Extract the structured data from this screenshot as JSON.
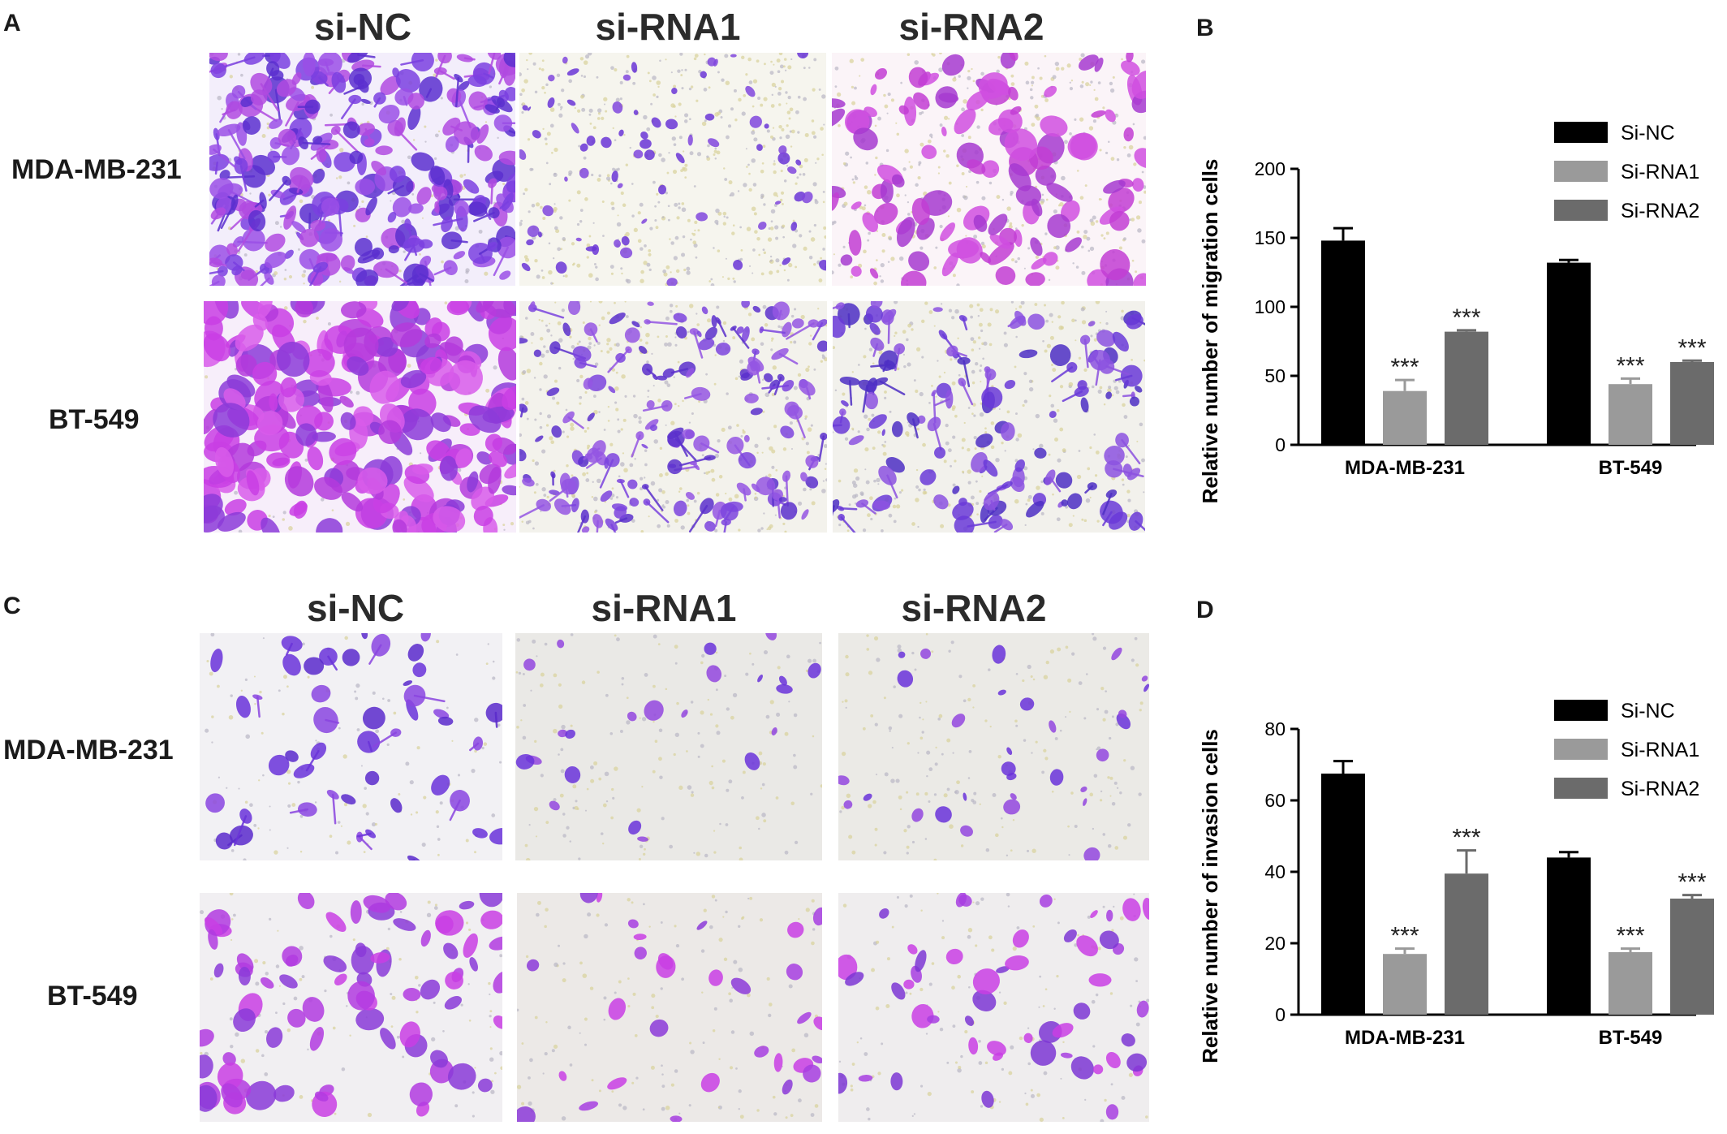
{
  "panels": {
    "A": {
      "letter": "A",
      "columns": [
        "si-NC",
        "si-RNA1",
        "si-RNA2"
      ],
      "rows": [
        "MDA-MB-231",
        "BT-549"
      ]
    },
    "B": {
      "letter": "B"
    },
    "C": {
      "letter": "C",
      "columns": [
        "si-NC",
        "si-RNA1",
        "si-RNA2"
      ],
      "rows": [
        "MDA-MB-231",
        "BT-549"
      ]
    },
    "D": {
      "letter": "D"
    }
  },
  "colors": {
    "si_nc": "#000000",
    "si_rna1": "#9a9a9a",
    "si_rna2": "#6b6b6b",
    "stain_violet": "#6a35d6",
    "stain_magenta": "#c63ce0",
    "stain_pink": "#e070e8"
  },
  "chart_data": [
    {
      "type": "bar",
      "panel": "B",
      "categories": [
        "MDA-MB-231",
        "BT-549"
      ],
      "ylabel": "Relative  number of migration cells",
      "xlabel": "",
      "ylim": [
        0,
        200
      ],
      "yticks": [
        "0",
        "50",
        "100",
        "150",
        "200"
      ],
      "legend_position": "top-right",
      "series": [
        {
          "name": "Si-NC",
          "values": [
            148,
            132
          ],
          "errors": [
            9,
            2
          ],
          "sig": [
            "",
            ""
          ]
        },
        {
          "name": "Si-RNA1",
          "values": [
            39,
            44
          ],
          "errors": [
            8,
            4
          ],
          "sig": [
            "***",
            "***"
          ]
        },
        {
          "name": "Si-RNA2",
          "values": [
            82,
            60
          ],
          "errors": [
            1,
            1
          ],
          "sig": [
            "***",
            "***"
          ]
        }
      ]
    },
    {
      "type": "bar",
      "panel": "D",
      "categories": [
        "MDA-MB-231",
        "BT-549"
      ],
      "ylabel": "Relative  number of invasion cells",
      "xlabel": "",
      "ylim": [
        0,
        80
      ],
      "yticks": [
        "0",
        "20",
        "40",
        "60",
        "80"
      ],
      "legend_position": "top-right",
      "series": [
        {
          "name": "Si-NC",
          "values": [
            67.5,
            44
          ],
          "errors": [
            3.5,
            1.5
          ],
          "sig": [
            "",
            ""
          ]
        },
        {
          "name": "Si-RNA1",
          "values": [
            17,
            17.5
          ],
          "errors": [
            1.5,
            1
          ],
          "sig": [
            "***",
            "***"
          ]
        },
        {
          "name": "Si-RNA2",
          "values": [
            39.5,
            32.5
          ],
          "errors": [
            6.5,
            1
          ],
          "sig": [
            "***",
            "***"
          ]
        }
      ]
    }
  ]
}
